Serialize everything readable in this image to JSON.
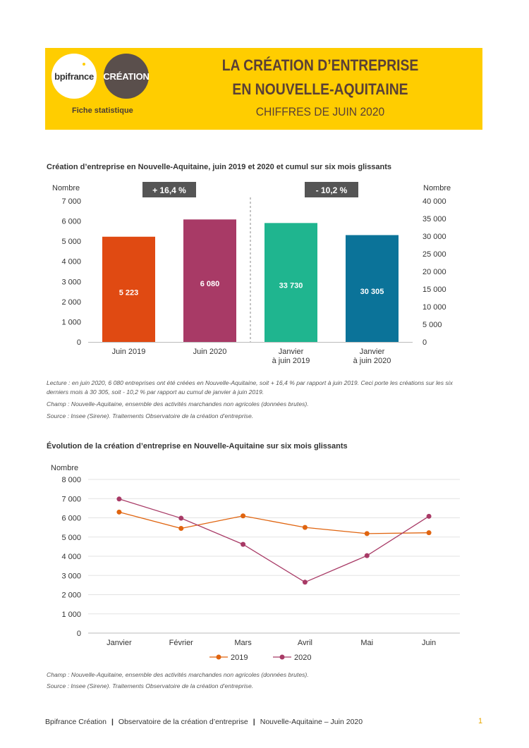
{
  "header": {
    "logo_bpi": "bpifrance",
    "logo_creation": "CRÉATION",
    "fiche": "Fiche statistique",
    "title_line1": "LA CRÉATION D’ENTREPRISE",
    "title_line2": "EN NOUVELLE-AQUITAINE",
    "subtitle": "CHIFFRES DE JUIN 2020",
    "banner_color": "#FFCD00"
  },
  "chart1": {
    "title": "Création d’entreprise en Nouvelle-Aquitaine, juin 2019 et 2020 et cumul sur six mois glissants",
    "lecture": "Lecture : en juin 2020, 6 080 entreprises ont été créées en Nouvelle-Aquitaine, soit + 16,4 % par rapport à juin 2019. Ceci porte les créations sur les six derniers mois à 30 305, soit - 10,2 % par rapport au cumul de janvier à juin 2019.",
    "champ": "Champ : Nouvelle-Aquitaine, ensemble des activités marchandes non agricoles (données brutes).",
    "source": "Source : Insee (Sirene). Traitements Observatoire de la création d’entreprise."
  },
  "chart2": {
    "title": "Évolution de la création d’entreprise en Nouvelle-Aquitaine sur six mois glissants",
    "champ": "Champ : Nouvelle-Aquitaine, ensemble des activités marchandes non agricoles (données brutes).",
    "source": "Source : Insee (Sirene). Traitements Observatoire de la création d’entreprise."
  },
  "chart_data": [
    {
      "type": "bar",
      "left_axis_label": "Nombre",
      "right_axis_label": "Nombre",
      "left_ylim": [
        0,
        7000
      ],
      "right_ylim": [
        0,
        40000
      ],
      "left_ticks": [
        "0",
        "1 000",
        "2 000",
        "3 000",
        "4 000",
        "5 000",
        "6 000",
        "7 000"
      ],
      "right_ticks": [
        "0",
        "5 000",
        "10 000",
        "15 000",
        "20 000",
        "25 000",
        "30 000",
        "35 000",
        "40 000"
      ],
      "categories": [
        "Juin 2019",
        "Juin 2020",
        "Janvier|à juin 2019",
        "Janvier|à juin 2020"
      ],
      "values": [
        5223,
        6080,
        33730,
        30305
      ],
      "value_labels": [
        "5 223",
        "6 080",
        "33 730",
        "30 305"
      ],
      "axis": [
        "left",
        "left",
        "right",
        "right"
      ],
      "colors": [
        "#E04A12",
        "#A83A66",
        "#1FB58F",
        "#0B7399"
      ],
      "badges": [
        "+ 16,4 %",
        "- 10,2 %"
      ],
      "badge_color": "#555555"
    },
    {
      "type": "line",
      "ylabel": "Nombre",
      "ylim": [
        0,
        8000
      ],
      "y_ticks": [
        "0",
        "1 000",
        "2 000",
        "3 000",
        "4 000",
        "5 000",
        "6 000",
        "7 000",
        "8 000"
      ],
      "categories": [
        "Janvier",
        "Février",
        "Mars",
        "Avril",
        "Mai",
        "Juin"
      ],
      "series": [
        {
          "name": "2019",
          "values": [
            6300,
            5450,
            6100,
            5500,
            5180,
            5223
          ],
          "color": "#E0640F"
        },
        {
          "name": "2020",
          "values": [
            6980,
            5980,
            4620,
            2650,
            4030,
            6080
          ],
          "color": "#A83A66"
        }
      ]
    }
  ],
  "footer": {
    "part1": "Bpifrance Création",
    "part2": "Observatoire de la création d’entreprise",
    "part3": "Nouvelle-Aquitaine – Juin 2020",
    "page": "1"
  }
}
